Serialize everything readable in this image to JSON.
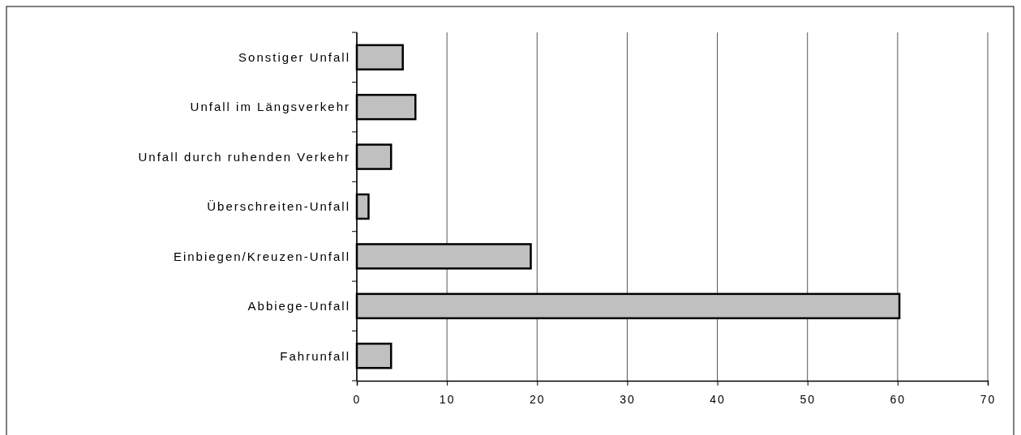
{
  "chart_data": {
    "type": "bar",
    "orientation": "horizontal",
    "categories": [
      "Sonstiger Unfall",
      "Unfall im Längsverkehr",
      "Unfall durch ruhenden Verkehr",
      "Überschreiten-Unfall",
      "Einbiegen/Kreuzen-Unfall",
      "Abbiege-Unfall",
      "Fahrunfall"
    ],
    "values": [
      5.1,
      6.5,
      3.8,
      1.3,
      19.3,
      60.2,
      3.8
    ],
    "color": "#c0c0c0",
    "xlim": [
      0,
      70
    ],
    "xticks": [
      0,
      10,
      20,
      30,
      40,
      50,
      60,
      70
    ],
    "grid": "x"
  }
}
